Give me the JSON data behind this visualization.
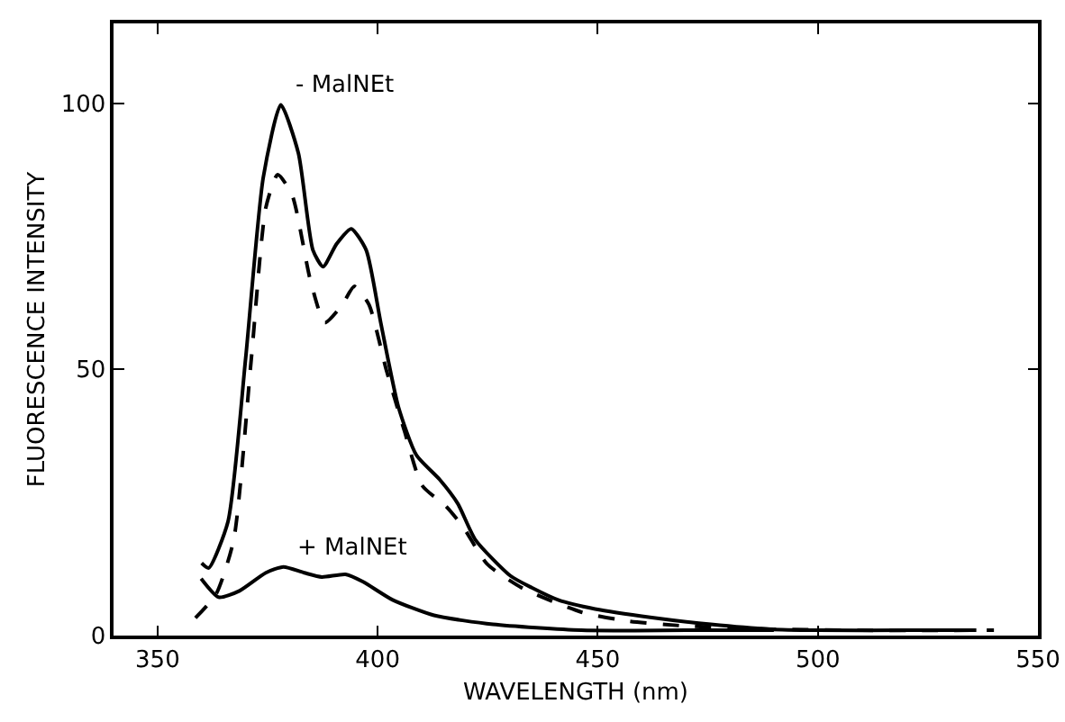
{
  "chart_data": {
    "type": "line",
    "xlabel": "WAVELENGTH (nm)",
    "ylabel": "FLUORESCENCE INTENSITY",
    "xlim": [
      340,
      550
    ],
    "xticks": [
      350,
      400,
      450,
      500,
      550
    ],
    "ylim": [
      0,
      115
    ],
    "yticks": [
      0,
      50,
      100
    ],
    "grid": false,
    "legend": false,
    "marker": "none",
    "series": [
      {
        "name": "- MalNEt",
        "color": "#000000",
        "line_style": "solid",
        "x": [
          360,
          361.6,
          366,
          370,
          374,
          378,
          382,
          385.3,
          387.6,
          390.7,
          394,
          397.4,
          400.7,
          404.7,
          408.8,
          414.1,
          418.2,
          422.2,
          430.2,
          435,
          441,
          449.4,
          462.3,
          475.7,
          489,
          500,
          520,
          536
        ],
        "values": [
          13.6,
          12.7,
          21.4,
          52,
          86,
          99.7,
          90.6,
          72.4,
          69.3,
          73.6,
          76.4,
          72.4,
          58.8,
          43,
          33.9,
          29.3,
          24.8,
          18,
          11.2,
          9,
          6.7,
          5,
          3.4,
          2.1,
          1.2,
          1,
          1,
          1
        ]
      },
      {
        "color": "#000000",
        "line_style": "dashed",
        "x": [
          358.6,
          363.3,
          367.3,
          371.3,
          374.6,
          377.3,
          380.6,
          384.7,
          388,
          392,
          394.7,
          398,
          402,
          406.1,
          410.1,
          415.5,
          419.5,
          424.8,
          432.9,
          446.3,
          457,
          470,
          490,
          510,
          540
        ],
        "values": [
          3.3,
          7.8,
          18,
          52,
          80.4,
          86.6,
          82.7,
          66.8,
          58.8,
          62.2,
          65.6,
          62.2,
          49.8,
          38.4,
          28.2,
          24.3,
          20.3,
          13.5,
          8.9,
          4.4,
          2.7,
          1.8,
          1.2,
          1,
          1
        ]
      },
      {
        "name": "+ MalNEt",
        "color": "#000000",
        "line_style": "solid",
        "x": [
          359.9,
          363.9,
          368.6,
          374.6,
          378.6,
          383.3,
          387.3,
          392.7,
          396.7,
          403.4,
          412.8,
          426.2,
          446.3,
          470,
          490
        ],
        "values": [
          10.7,
          7.2,
          8.4,
          11.8,
          12.9,
          11.8,
          11,
          11.5,
          10.1,
          6.7,
          3.8,
          2.1,
          1,
          1,
          1
        ]
      }
    ]
  }
}
